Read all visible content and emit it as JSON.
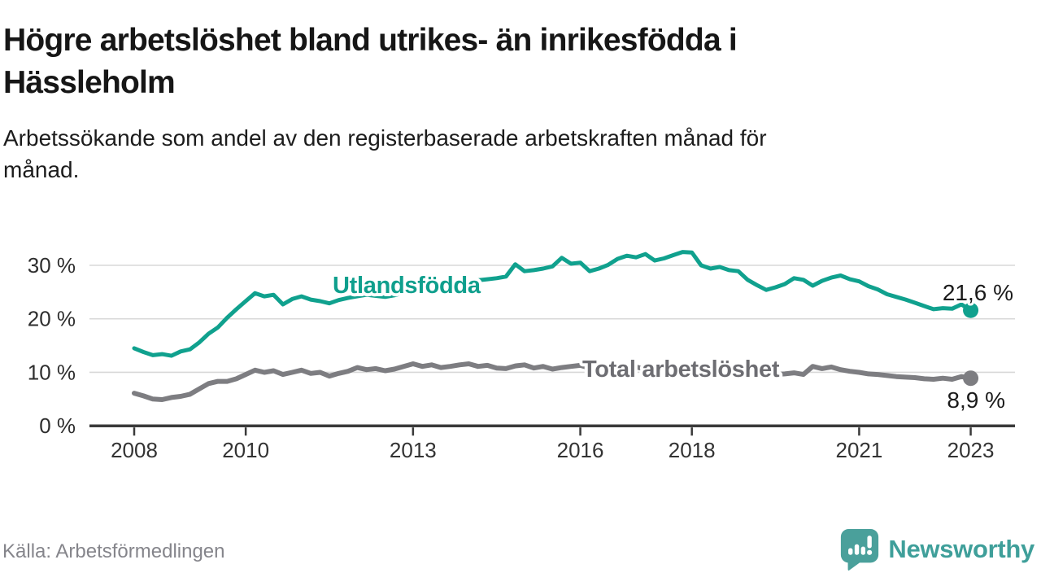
{
  "header": {
    "title_line1": "Högre arbetslöshet bland utrikes- än inrikesfödda i",
    "title_line2": "Hässleholm",
    "subtitle_line1": "Arbetssökande som andel av den registerbaserade arbetskraften månad för",
    "subtitle_line2": "månad."
  },
  "footer": {
    "source": "Källa: Arbetsförmedlingen",
    "brand": "Newsworthy"
  },
  "colors": {
    "teal_line": "#10a18e",
    "gray_line": "#7d7d81",
    "teal_label": "#0f9f8d",
    "gray_label": "#6d6d72",
    "grid": "#d8d8d8",
    "axis": "#3a3a3a",
    "text": "#161616",
    "brand_teal": "#4aa09b"
  },
  "chart_data": {
    "type": "line",
    "x_start": 2008,
    "x_step": 0.1666667,
    "ylim": [
      0,
      35
    ],
    "grid": true,
    "xticks": [
      2008,
      2010,
      2013,
      2016,
      2018,
      2021,
      2023
    ],
    "yticks": [
      {
        "value": 0,
        "label": "0 %"
      },
      {
        "value": 10,
        "label": "10 %"
      },
      {
        "value": 20,
        "label": "20 %"
      },
      {
        "value": 30,
        "label": "30 %"
      }
    ],
    "series": [
      {
        "name": "Utlandsfödda",
        "end_label": "21,6 %",
        "color": "#10a18e",
        "values": [
          14.5,
          13.8,
          13.2,
          13.4,
          13.1,
          13.9,
          14.3,
          15.6,
          17.2,
          18.4,
          20.2,
          21.8,
          23.3,
          24.8,
          24.2,
          24.5,
          22.7,
          23.7,
          24.2,
          23.6,
          23.3,
          22.9,
          23.5,
          23.9,
          24.2,
          24.5,
          24.3,
          24.1,
          24.4,
          24.9,
          25.3,
          25.6,
          25.4,
          25.8,
          26.2,
          26.6,
          26.9,
          27.2,
          27.4,
          27.6,
          27.9,
          30.2,
          28.9,
          29.1,
          29.4,
          29.8,
          31.4,
          30.3,
          30.5,
          28.9,
          29.4,
          30.1,
          31.2,
          31.8,
          31.5,
          32.1,
          30.9,
          31.3,
          31.9,
          32.5,
          32.4,
          30.0,
          29.4,
          29.7,
          29.1,
          28.9,
          27.3,
          26.3,
          25.4,
          25.9,
          26.5,
          27.6,
          27.3,
          26.2,
          27.1,
          27.7,
          28.1,
          27.4,
          27.0,
          26.1,
          25.5,
          24.6,
          24.1,
          23.6,
          23.0,
          22.4,
          21.8,
          22.0,
          21.9,
          22.7,
          21.6
        ]
      },
      {
        "name": "Total arbetslöshet",
        "end_label": "8,9 %",
        "color": "#7d7d81",
        "values": [
          6.1,
          5.6,
          5.0,
          4.9,
          5.3,
          5.5,
          5.9,
          6.9,
          7.9,
          8.3,
          8.3,
          8.8,
          9.6,
          10.4,
          10.0,
          10.3,
          9.6,
          10.0,
          10.4,
          9.8,
          10.0,
          9.3,
          9.8,
          10.2,
          10.9,
          10.5,
          10.7,
          10.3,
          10.6,
          11.1,
          11.6,
          11.1,
          11.4,
          10.9,
          11.1,
          11.4,
          11.6,
          11.1,
          11.3,
          10.8,
          10.7,
          11.2,
          11.4,
          10.8,
          11.1,
          10.6,
          10.9,
          11.1,
          11.3,
          10.8,
          11.0,
          10.6,
          10.7,
          10.9,
          11.0,
          10.6,
          10.8,
          10.4,
          10.5,
          10.7,
          10.8,
          10.4,
          10.5,
          10.1,
          10.0,
          10.2,
          10.3,
          9.9,
          9.8,
          9.6,
          9.7,
          9.9,
          9.6,
          11.1,
          10.7,
          11.0,
          10.5,
          10.2,
          10.0,
          9.7,
          9.6,
          9.4,
          9.2,
          9.1,
          9.0,
          8.8,
          8.7,
          8.9,
          8.7,
          9.2,
          8.9
        ]
      }
    ]
  }
}
